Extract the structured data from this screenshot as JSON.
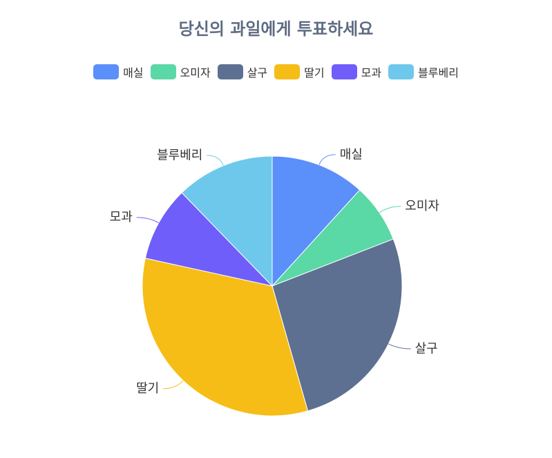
{
  "chart_data": {
    "type": "pie",
    "title": "당신의 과일에게 투표하세요",
    "legend_position": "top",
    "categories": [
      "매실",
      "오미자",
      "살구",
      "딸기",
      "모과",
      "블루베리"
    ],
    "values": [
      12,
      7.5,
      27,
      33.5,
      9.5,
      12.5
    ],
    "colors": [
      "#5b8ff9",
      "#5ad8a6",
      "#5d7092",
      "#f6bd16",
      "#6f5ef9",
      "#6dc8ec"
    ]
  }
}
